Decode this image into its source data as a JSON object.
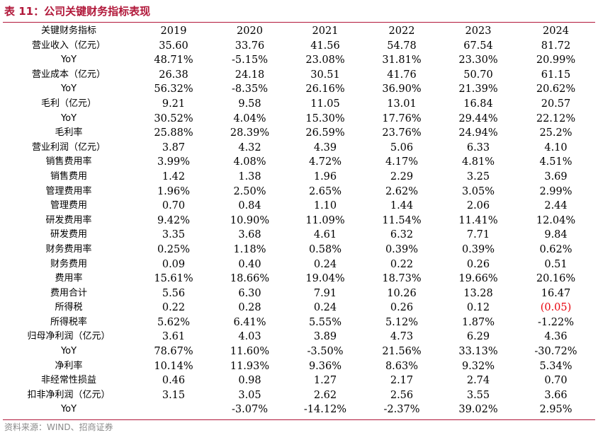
{
  "title": "表 11：公司关键财务指标表现",
  "header": [
    "关键财务指标",
    "2019",
    "2020",
    "2021",
    "2022",
    "2023",
    "2024"
  ],
  "rows": [
    {
      "label": "营业收入（亿元）",
      "values": [
        "35.60",
        "33.76",
        "41.56",
        "54.78",
        "67.54",
        "81.72"
      ]
    },
    {
      "label": "YoY",
      "values": [
        "48.71%",
        "-5.15%",
        "23.08%",
        "31.81%",
        "23.30%",
        "20.99%"
      ]
    },
    {
      "label": "营业成本（亿元）",
      "values": [
        "26.38",
        "24.18",
        "30.51",
        "41.76",
        "50.70",
        "61.15"
      ]
    },
    {
      "label": "YoY",
      "values": [
        "56.32%",
        "-8.35%",
        "26.16%",
        "36.90%",
        "21.39%",
        "20.62%"
      ]
    },
    {
      "label": "毛利（亿元）",
      "values": [
        "9.21",
        "9.58",
        "11.05",
        "13.01",
        "16.84",
        "20.57"
      ]
    },
    {
      "label": "YoY",
      "values": [
        "30.52%",
        "4.04%",
        "15.30%",
        "17.76%",
        "29.44%",
        "22.12%"
      ]
    },
    {
      "label": "毛利率",
      "values": [
        "25.88%",
        "28.39%",
        "26.59%",
        "23.76%",
        "24.94%",
        "25.2%"
      ]
    },
    {
      "label": "营业利润（亿元）",
      "values": [
        "3.87",
        "4.32",
        "4.39",
        "5.06",
        "6.33",
        "4.10"
      ]
    },
    {
      "label": "销售费用率",
      "values": [
        "3.99%",
        "4.08%",
        "4.72%",
        "4.17%",
        "4.81%",
        "4.51%"
      ]
    },
    {
      "label": "销售费用",
      "values": [
        "1.42",
        "1.38",
        "1.96",
        "2.29",
        "3.25",
        "3.69"
      ]
    },
    {
      "label": "管理费用率",
      "values": [
        "1.96%",
        "2.50%",
        "2.65%",
        "2.62%",
        "3.05%",
        "2.99%"
      ]
    },
    {
      "label": "管理费用",
      "values": [
        "0.70",
        "0.84",
        "1.10",
        "1.44",
        "2.06",
        "2.44"
      ]
    },
    {
      "label": "研发费用率",
      "values": [
        "9.42%",
        "10.90%",
        "11.09%",
        "11.54%",
        "11.41%",
        "12.04%"
      ]
    },
    {
      "label": "研发费用",
      "values": [
        "3.35",
        "3.68",
        "4.61",
        "6.32",
        "7.71",
        "9.84"
      ]
    },
    {
      "label": "财务费用率",
      "values": [
        "0.25%",
        "1.18%",
        "0.58%",
        "0.39%",
        "0.39%",
        "0.62%"
      ]
    },
    {
      "label": "财务费用",
      "values": [
        "0.09",
        "0.40",
        "0.24",
        "0.22",
        "0.26",
        "0.51"
      ]
    },
    {
      "label": "费用率",
      "values": [
        "15.61%",
        "18.66%",
        "19.04%",
        "18.73%",
        "19.66%",
        "20.16%"
      ]
    },
    {
      "label": "费用合计",
      "values": [
        "5.56",
        "6.30",
        "7.91",
        "10.26",
        "13.28",
        "16.47"
      ]
    },
    {
      "label": "所得税",
      "values": [
        "0.22",
        "0.28",
        "0.24",
        "0.26",
        "0.12",
        "(0.05)"
      ],
      "red": [
        5
      ]
    },
    {
      "label": "所得税率",
      "values": [
        "5.62%",
        "6.41%",
        "5.55%",
        "5.12%",
        "1.87%",
        "-1.22%"
      ]
    },
    {
      "label": "归母净利润（亿元）",
      "values": [
        "3.61",
        "4.03",
        "3.89",
        "4.73",
        "6.29",
        "4.36"
      ]
    },
    {
      "label": "YoY",
      "values": [
        "78.67%",
        "11.60%",
        "-3.50%",
        "21.56%",
        "33.13%",
        "-30.72%"
      ]
    },
    {
      "label": "净利率",
      "values": [
        "10.14%",
        "11.93%",
        "9.36%",
        "8.63%",
        "9.32%",
        "5.34%"
      ]
    },
    {
      "label": "非经常性损益",
      "values": [
        "0.46",
        "0.98",
        "1.27",
        "2.17",
        "2.74",
        "0.70"
      ]
    },
    {
      "label": "扣非净利润（亿元）",
      "values": [
        "3.15",
        "3.05",
        "2.62",
        "2.56",
        "3.55",
        "3.66"
      ]
    },
    {
      "label": "YoY",
      "values": [
        "",
        "-3.07%",
        "-14.12%",
        "-2.37%",
        "39.02%",
        "2.95%"
      ]
    }
  ],
  "source": "资料来源：WIND、招商证券",
  "colors": {
    "accent": "#b1183a",
    "negative": "#e8000b",
    "source_text": "#8a8a8a"
  }
}
